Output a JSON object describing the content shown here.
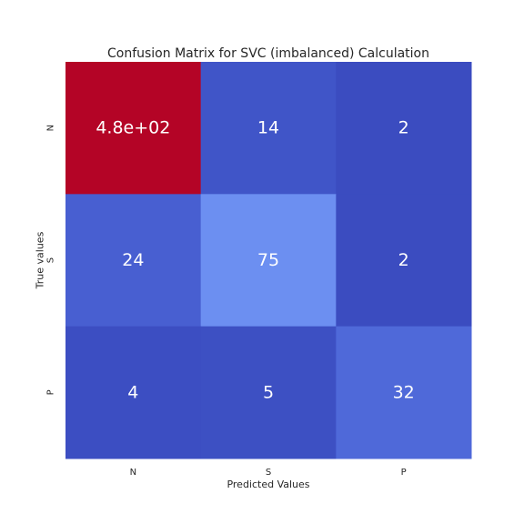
{
  "chart_data": {
    "type": "heatmap",
    "title": "Confusion Matrix for SVC (imbalanced) Calculation",
    "xlabel": "Predicted Values",
    "ylabel": "True values",
    "x_categories": [
      "N",
      "S",
      "P"
    ],
    "y_categories": [
      "N",
      "S",
      "P"
    ],
    "values": [
      [
        480,
        14,
        2
      ],
      [
        24,
        75,
        2
      ],
      [
        4,
        5,
        32
      ]
    ],
    "cell_labels": [
      [
        "4.8e+02",
        "14",
        "2"
      ],
      [
        "24",
        "75",
        "2"
      ],
      [
        "4",
        "5",
        "32"
      ]
    ],
    "colormap": "coolwarm",
    "colors": {
      "cells": [
        [
          "#b40426",
          "#4055c8",
          "#3b4cc0"
        ],
        [
          "#485fd1",
          "#6c8ff1",
          "#3b4cc0"
        ],
        [
          "#3c4ec2",
          "#3d50c3",
          "#4f69d9"
        ]
      ],
      "cell_text": "#ffffff",
      "text": "#262626"
    },
    "colorbar": false,
    "grid": false
  }
}
